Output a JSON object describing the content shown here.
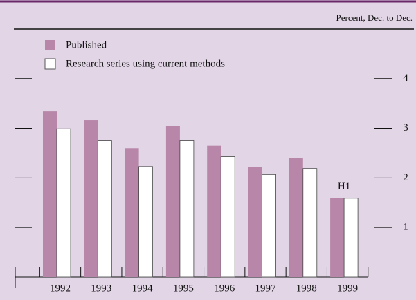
{
  "chart_data": {
    "type": "bar",
    "unit_label": "Percent, Dec. to Dec.",
    "categories": [
      "1992",
      "1993",
      "1994",
      "1995",
      "1996",
      "1997",
      "1998",
      "1999"
    ],
    "series": [
      {
        "name": "Published",
        "color": "#b786a9",
        "values": [
          3.34,
          3.16,
          2.6,
          3.04,
          2.65,
          2.22,
          2.4,
          1.59
        ]
      },
      {
        "name": "Research series using current methods",
        "color": "#ffffff",
        "values": [
          2.99,
          2.75,
          2.23,
          2.75,
          2.43,
          2.07,
          2.19,
          1.59
        ]
      }
    ],
    "annotation": "H1",
    "ylim": [
      0,
      4.4
    ],
    "yticks": [
      1,
      2,
      3,
      4
    ]
  }
}
